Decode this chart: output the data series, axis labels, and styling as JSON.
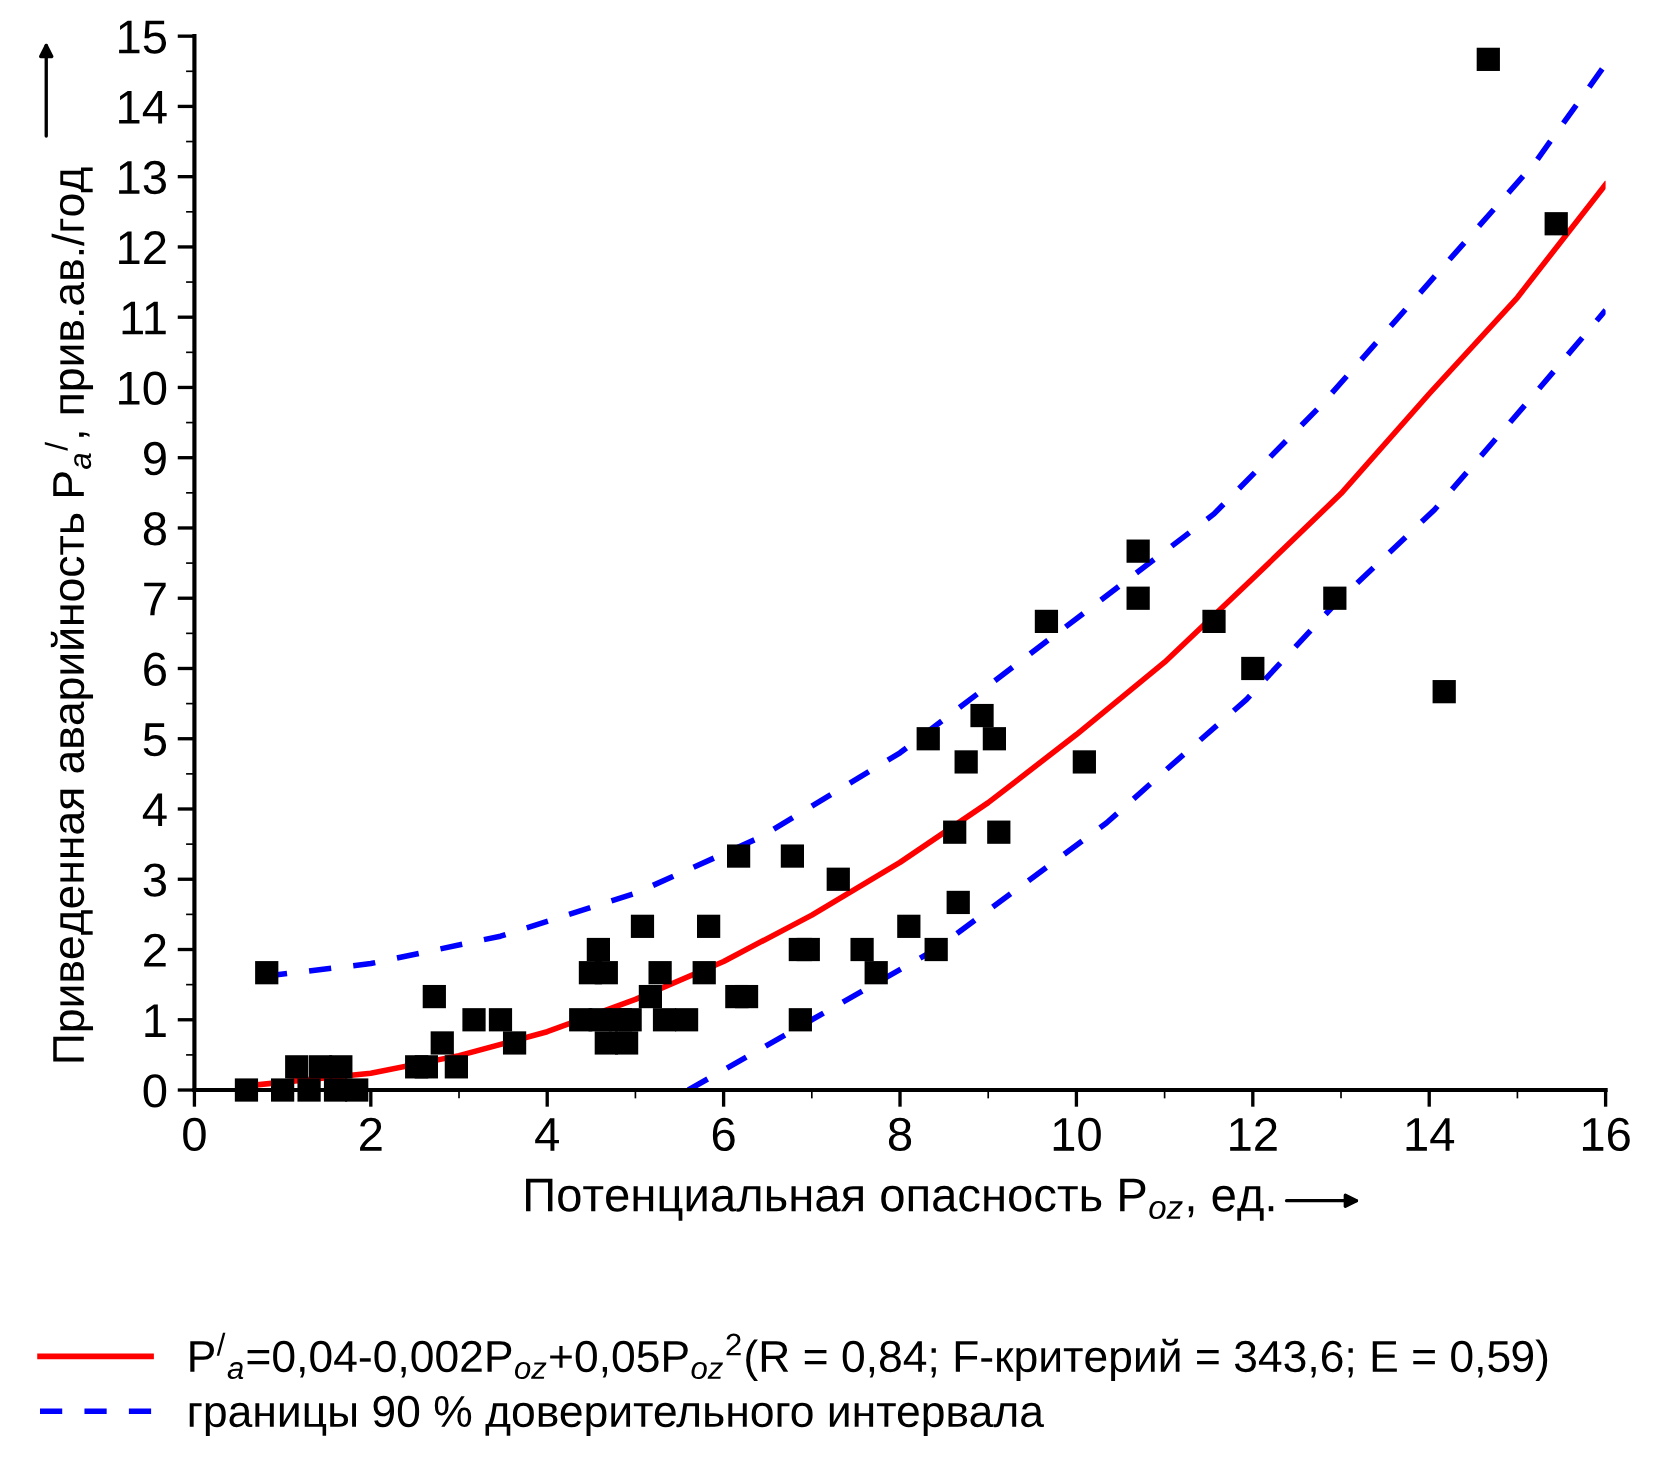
{
  "chart_data": {
    "type": "scatter",
    "xlabel": "Потенциальная опасность P$_{oz}$, ед.",
    "ylabel": "Приведенная аварийность P$_{a}$$^{/}$, прив.ав./год",
    "xlim": [
      0,
      16
    ],
    "xticks": [
      0,
      2,
      4,
      6,
      8,
      10,
      12,
      14,
      16
    ],
    "ylim": [
      0,
      15
    ],
    "yticks": [
      0,
      1,
      2,
      3,
      4,
      5,
      6,
      7,
      8,
      9,
      10,
      11,
      12,
      13,
      14,
      15
    ],
    "grid": false,
    "legend": "bottom",
    "series": [
      {
        "marker": "square",
        "color": "#000000",
        "x": [
          0.59,
          1.0,
          1.3,
          1.6,
          1.84,
          1.16,
          1.43,
          1.66,
          2.52,
          2.63,
          2.97,
          0.82,
          2.72,
          2.81,
          3.17,
          3.47,
          3.63,
          4.38,
          4.6,
          4.83,
          4.94,
          4.58,
          4.49,
          4.67,
          4.67,
          4.9,
          5.08,
          5.28,
          5.17,
          5.33,
          5.58,
          5.83,
          5.78,
          6.17,
          6.15,
          6.26,
          6.78,
          7.3,
          8.32,
          8.93,
          9.07,
          8.75,
          10.09,
          8.62,
          9.12,
          8.66,
          8.1,
          8.41,
          7.57,
          7.73,
          6.87,
          6.96,
          6.87,
          14.67,
          15.44,
          10.7,
          10.7,
          9.66,
          11.56,
          12.93,
          12.0,
          14.17
        ],
        "values": [
          0,
          0,
          0,
          0,
          0,
          0.33,
          0.33,
          0.33,
          0.33,
          0.33,
          0.33,
          1.67,
          1.33,
          0.67,
          1.0,
          1.0,
          0.67,
          1.0,
          1.0,
          1.0,
          1.0,
          2.0,
          1.67,
          1.67,
          0.67,
          0.67,
          2.33,
          1.67,
          1.33,
          1.0,
          1.0,
          2.33,
          1.67,
          3.33,
          1.33,
          1.33,
          3.33,
          3.0,
          5.0,
          5.33,
          5.0,
          4.67,
          4.67,
          3.67,
          3.67,
          2.67,
          2.33,
          2.0,
          2.0,
          1.67,
          2.0,
          2.0,
          1.0,
          14.67,
          12.33,
          7.67,
          7.0,
          6.67,
          6.67,
          7.0,
          6.0,
          5.67
        ]
      },
      {
        "type": "line",
        "name": "P$^{/}$$_{a}$=0,04-0,002P$_{oz}$+0,05P$_{oz}$$^{2}$(R = 0,84; F-критерий = 343,6; E = 0,59)",
        "color": "#ff0000",
        "line_style": "solid",
        "x": [
          0.6,
          2,
          3,
          4,
          5,
          6,
          7,
          8,
          9,
          10,
          11,
          12,
          13,
          14,
          15,
          16
        ],
        "values": [
          0.06,
          0.24,
          0.49,
          0.83,
          1.29,
          1.83,
          2.49,
          3.24,
          4.09,
          5.06,
          6.09,
          7.28,
          8.49,
          9.91,
          11.28,
          12.89
        ]
      },
      {
        "type": "line",
        "name": "границы 90 % доверительного интервала",
        "color": "#0000ff",
        "line_style": "dashed",
        "x": [
          0.8,
          2,
          3.47,
          5,
          6.42,
          8,
          10.2,
          11.56,
          12.77,
          13.97,
          15.2,
          16
        ],
        "values": [
          1.62,
          1.8,
          2.19,
          2.8,
          3.6,
          4.8,
          6.9,
          8.2,
          9.74,
          11.45,
          13.2,
          14.6
        ]
      },
      {
        "type": "line",
        "color": "#0000ff",
        "line_style": "dashed",
        "x": [
          5.6,
          7.0,
          8.4,
          10.34,
          11.02,
          11.93,
          12.92,
          14.06,
          15.19,
          16
        ],
        "values": [
          0,
          1.0,
          2.0,
          3.8,
          4.56,
          5.56,
          6.9,
          8.26,
          9.9,
          11.1
        ]
      }
    ]
  }
}
